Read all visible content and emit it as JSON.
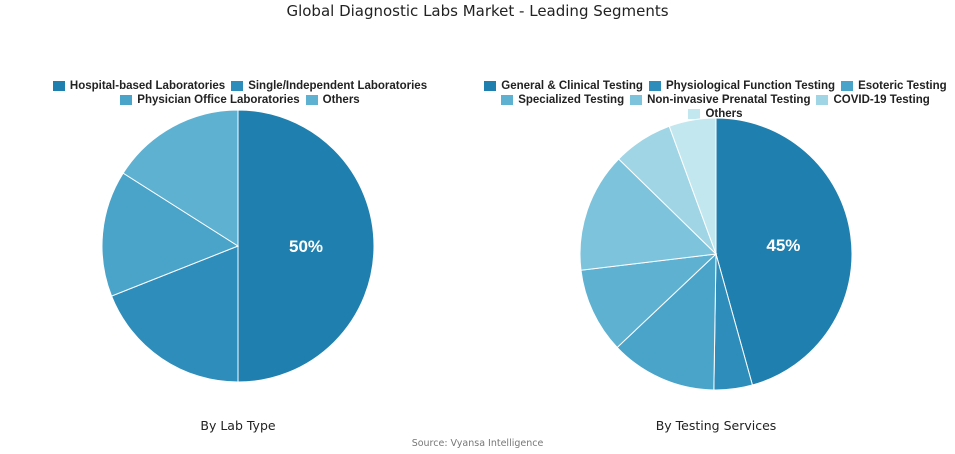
{
  "title": "Global Diagnostic Labs Market - Leading Segments",
  "source": "Source: Vyansa Intelligence",
  "chart_data": [
    {
      "type": "pie",
      "title": "By Lab Type",
      "categories": [
        "Hospital-based Laboratories",
        "Single/Independent Laboratories",
        "Physician Office Laboratories",
        "Others"
      ],
      "values": [
        50,
        19,
        15,
        16
      ],
      "colors": [
        "#1f7fae",
        "#2e8dba",
        "#4aa3c9",
        "#5fb1d2"
      ],
      "data_labels": [
        "50%",
        "",
        "",
        ""
      ],
      "legend_position": "top"
    },
    {
      "type": "pie",
      "title": "By Testing Services",
      "categories": [
        "General & Clinical Testing",
        "Physiological Function Testing",
        "Esoteric Testing",
        "Specialized Testing",
        "Non-invasive Prenatal Testing",
        "COVID-19 Testing",
        "Others"
      ],
      "values": [
        45,
        4.5,
        12.5,
        10,
        14,
        7,
        5.5
      ],
      "colors": [
        "#1f7fae",
        "#2e8dba",
        "#4aa3c9",
        "#5fb1d2",
        "#7dc3dc",
        "#a0d5e5",
        "#c3e7ef"
      ],
      "data_labels": [
        "45%",
        "",
        "",
        "",
        "",
        "",
        ""
      ],
      "legend_position": "top"
    }
  ]
}
